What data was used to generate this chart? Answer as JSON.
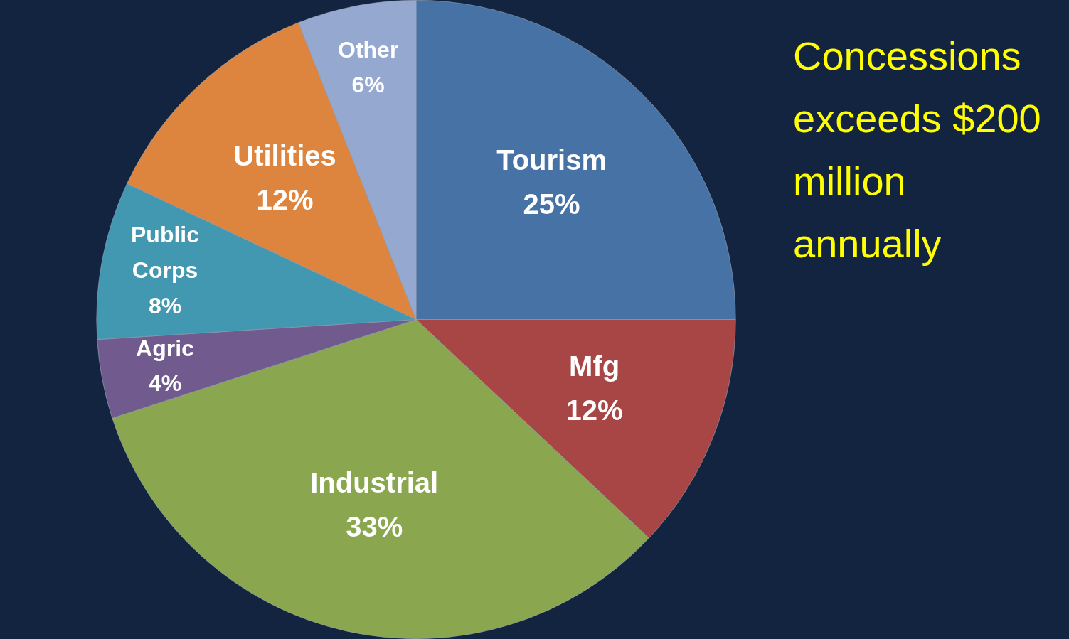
{
  "chart_data": {
    "type": "pie",
    "title": "Concessions exceeds $200 million annually",
    "categories": [
      "Tourism",
      "Mfg",
      "Industrial",
      "Agric",
      "Public Corps",
      "Utilities",
      "Other"
    ],
    "values": [
      25,
      12,
      33,
      4,
      8,
      12,
      6
    ],
    "colors": [
      "#4672a6",
      "#a84646",
      "#8aa64e",
      "#705a8e",
      "#4298b0",
      "#dd853f",
      "#94a8d0"
    ],
    "value_labels": [
      "25%",
      "12%",
      "33%",
      "4%",
      "8%",
      "12%",
      "6%"
    ],
    "legend": false
  }
}
